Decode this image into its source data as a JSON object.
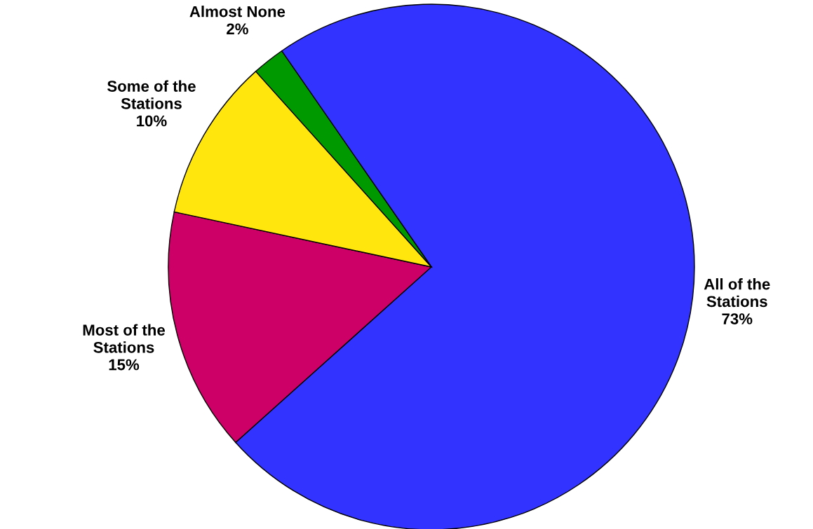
{
  "chart_data": {
    "type": "pie",
    "categories": [
      "All of the Stations",
      "Most of the Stations",
      "Some of the Stations",
      "Almost None"
    ],
    "values": [
      73,
      15,
      10,
      2
    ],
    "value_labels": [
      "73%",
      "15%",
      "10%",
      "2%"
    ],
    "colors": [
      "#3333ff",
      "#cc0066",
      "#ffe60d",
      "#009900"
    ],
    "legend": false
  }
}
